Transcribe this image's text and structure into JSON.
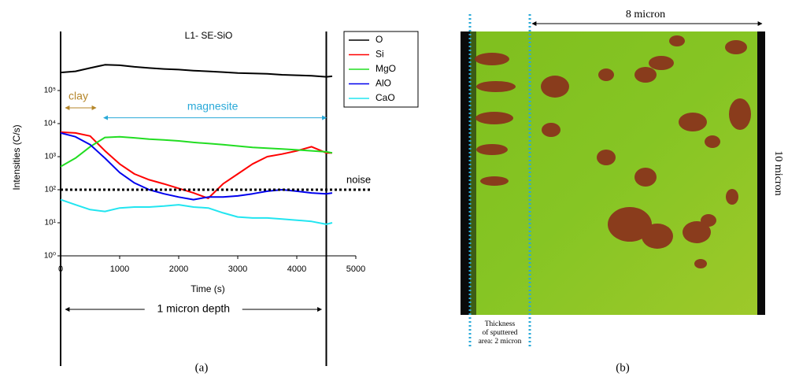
{
  "chart_data": {
    "type": "line",
    "title": "L1- SE-SiO",
    "x_label": "Time (s)",
    "y_label": "Intensities (C/s)",
    "log_y": true,
    "x": [
      0,
      250,
      500,
      750,
      1000,
      1250,
      1500,
      1750,
      2000,
      2250,
      2500,
      2750,
      3000,
      3250,
      3500,
      3750,
      4000,
      4250,
      4500,
      4600
    ],
    "series": [
      {
        "name": "O",
        "color": "#000000",
        "values": [
          350000,
          380000,
          480000,
          600000,
          580000,
          520000,
          480000,
          450000,
          430000,
          400000,
          380000,
          360000,
          340000,
          330000,
          320000,
          300000,
          290000,
          280000,
          260000,
          270000
        ]
      },
      {
        "name": "Si",
        "color": "#ff0000",
        "values": [
          5500,
          5200,
          4200,
          1500,
          600,
          300,
          200,
          150,
          110,
          80,
          55,
          150,
          300,
          600,
          1000,
          1200,
          1500,
          2000,
          1300,
          1300
        ]
      },
      {
        "name": "MgO",
        "color": "#22dd22",
        "values": [
          500,
          900,
          2000,
          3800,
          4000,
          3700,
          3400,
          3200,
          3000,
          2700,
          2500,
          2300,
          2100,
          1900,
          1800,
          1700,
          1600,
          1500,
          1400,
          1300
        ]
      },
      {
        "name": "AlO",
        "color": "#0000ee",
        "values": [
          5200,
          4000,
          2300,
          900,
          330,
          160,
          100,
          75,
          60,
          50,
          60,
          60,
          65,
          75,
          90,
          100,
          90,
          80,
          75,
          80
        ]
      },
      {
        "name": "CaO",
        "color": "#22e5f0",
        "values": [
          50,
          35,
          25,
          22,
          28,
          30,
          30,
          32,
          35,
          30,
          28,
          20,
          15,
          14,
          14,
          13,
          12,
          11,
          9,
          10
        ]
      }
    ],
    "xlim": [
      0,
      5000
    ],
    "xticks": [
      0,
      1000,
      2000,
      3000,
      4000,
      5000
    ],
    "ylim": [
      1,
      1000000
    ],
    "yticks": [
      {
        "value": 1,
        "label": "10⁰"
      },
      {
        "value": 10,
        "label": "10¹"
      },
      {
        "value": 100,
        "label": "10²"
      },
      {
        "value": 1000,
        "label": "10³"
      },
      {
        "value": 10000,
        "label": "10⁴"
      },
      {
        "value": 100000,
        "label": "10⁵"
      }
    ],
    "legend": "top-right",
    "noise": {
      "label": "noise",
      "value": 100
    },
    "annotations": [
      {
        "text": "clay",
        "x": [
          0,
          600
        ],
        "y": 30000,
        "color": "#b5862a"
      },
      {
        "text": "magnesite",
        "x": [
          650,
          4500
        ],
        "y": 15000,
        "color": "#29a9d8"
      }
    ],
    "depth_span": {
      "label": "1 micron depth",
      "x": [
        0,
        4500
      ]
    },
    "panel_label": "(a)"
  },
  "image_panel": {
    "top_label": "8 micron",
    "right_label": "10 micron",
    "bottom_note": [
      "Thickness",
      "of sputtered",
      "area: 2 micron"
    ],
    "panel_label": "(b)"
  }
}
